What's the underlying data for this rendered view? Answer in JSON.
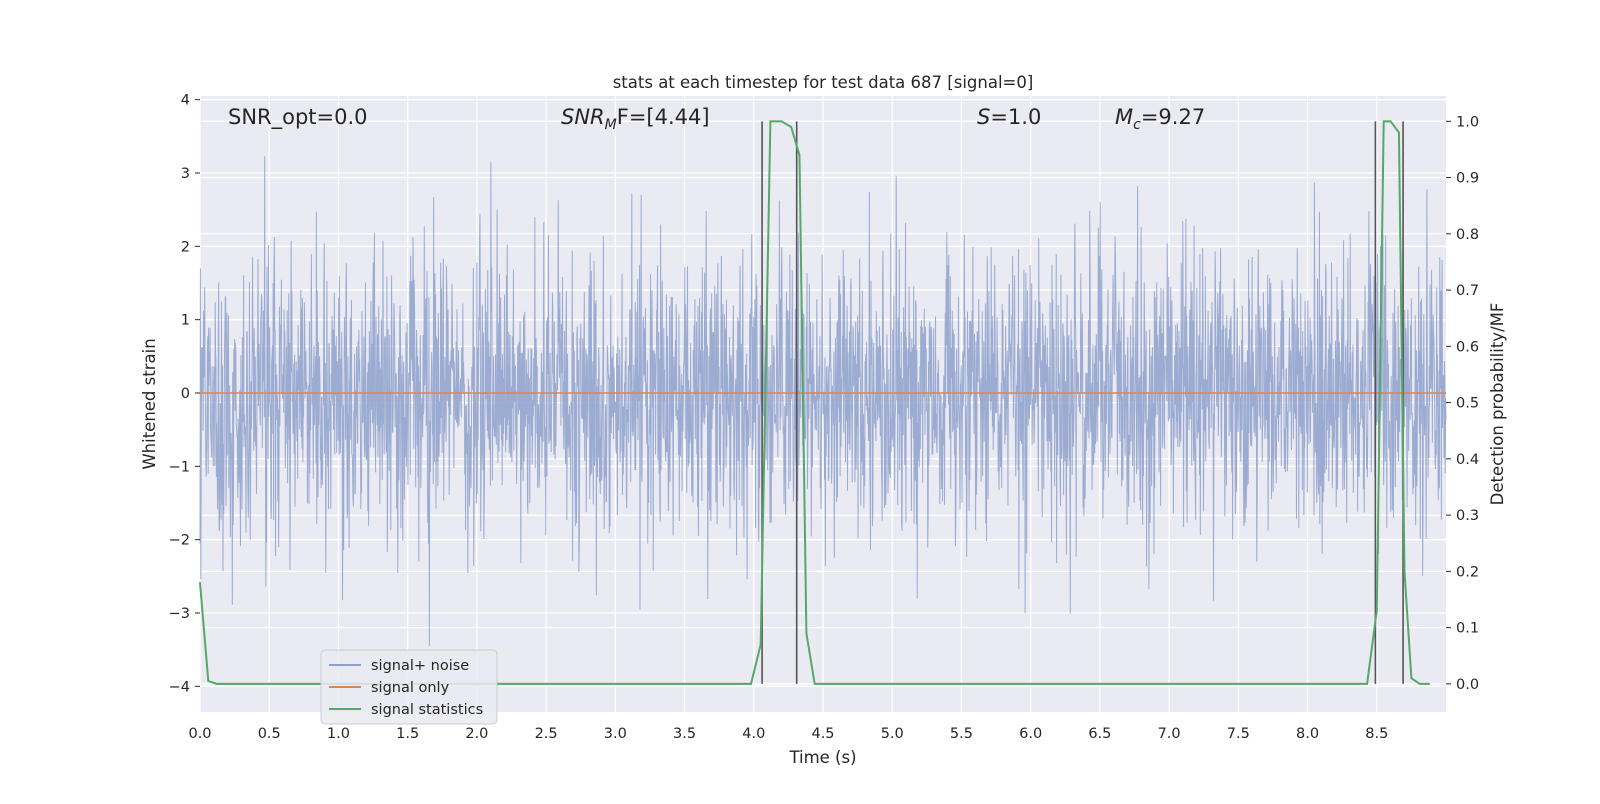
{
  "chart_data": {
    "type": "line",
    "title": "stats at each timestep for test data 687 [signal=0]",
    "xlabel": "Time (s)",
    "ylabel_left": "Whitened strain",
    "ylabel_right": "Detection probability/MF",
    "xlim": [
      0.0,
      9.0
    ],
    "ylim_left": [
      -4.35,
      4.05
    ],
    "ylim_right": [
      -0.05,
      1.045
    ],
    "x_ticks": [
      "0.0",
      "0.5",
      "1.0",
      "1.5",
      "2.0",
      "2.5",
      "3.0",
      "3.5",
      "4.0",
      "4.5",
      "5.0",
      "5.5",
      "6.0",
      "6.5",
      "7.0",
      "7.5",
      "8.0",
      "8.5"
    ],
    "y_ticks_left": [
      "4",
      "3",
      "2",
      "1",
      "0",
      "−1",
      "−2",
      "−3",
      "−4"
    ],
    "y_ticks_right": [
      "1.0",
      "0.9",
      "0.8",
      "0.7",
      "0.6",
      "0.5",
      "0.4",
      "0.3",
      "0.2",
      "0.1",
      "0.0"
    ],
    "grid": true,
    "legend_position": "lower-left",
    "annotations": {
      "snr_opt": "SNR_opt=0.0",
      "snr_mf_sym": "SNR",
      "snr_mf_sub": "M",
      "snr_mf_tail": "F=[4.44]",
      "s_sym": "S",
      "s_val": "=1.0",
      "mc_sym": "M",
      "mc_sub": "c",
      "mc_val": "=9.27"
    },
    "series": [
      {
        "name": "signal+ noise",
        "color": "#8da0cb",
        "axis": "left",
        "description": "dense whitened noise trace, roughly ±2 typical with peaks up to ~±3.6",
        "envelope": {
          "typical": [
            -1.8,
            2.0
          ],
          "extreme": [
            -3.5,
            3.6
          ]
        }
      },
      {
        "name": "signal only",
        "color": "#dd8452",
        "axis": "left",
        "x": [
          0.0,
          9.0
        ],
        "y": [
          0.0,
          0.0
        ]
      },
      {
        "name": "signal statistics",
        "color": "#55a868",
        "axis": "right",
        "x": [
          0.0,
          0.06,
          0.12,
          3.98,
          4.05,
          4.12,
          4.2,
          4.27,
          4.33,
          4.38,
          4.44,
          8.43,
          8.5,
          8.55,
          8.6,
          8.66,
          8.7,
          8.75,
          8.81,
          8.88
        ],
        "y": [
          0.18,
          0.005,
          0.0,
          0.0,
          0.07,
          1.0,
          1.0,
          0.99,
          0.94,
          0.09,
          0.0,
          0.0,
          0.13,
          1.0,
          1.0,
          0.98,
          0.2,
          0.01,
          0.0,
          0.0
        ]
      }
    ],
    "detection_markers_x": [
      4.06,
      4.31,
      8.49,
      8.69
    ]
  }
}
